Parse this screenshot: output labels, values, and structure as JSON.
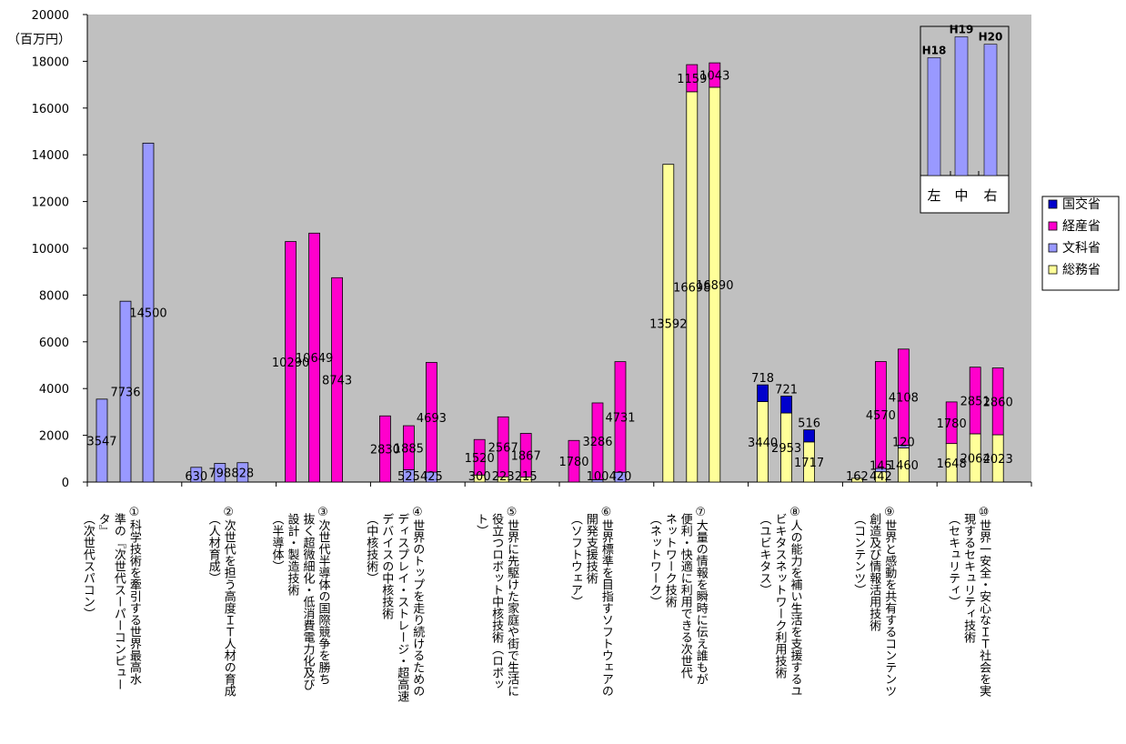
{
  "chart_data": {
    "type": "bar",
    "stacked": true,
    "unit_label": "（百万円）",
    "ylim": [
      0,
      20000
    ],
    "yticks": [
      0,
      2000,
      4000,
      6000,
      8000,
      10000,
      12000,
      14000,
      16000,
      18000,
      20000
    ],
    "grid": false,
    "legend_position": "right",
    "bar_positions_in_group": [
      "左",
      "中",
      "右"
    ],
    "series_order": [
      "総務省",
      "文科省",
      "経産省",
      "国交省"
    ],
    "colors": {
      "総務省": "#ffff99",
      "文科省": "#9999ff",
      "経産省": "#ff00cc",
      "国交省": "#0000cc",
      "plot_bg": "#c0c0c0"
    },
    "legend": [
      "国交省",
      "経産省",
      "文科省",
      "総務省"
    ],
    "categories": [
      {
        "num": "①",
        "label": "科学技術を牽引する世界最高水\n準の『次世代スーパーコンピュー\nタ』\n（次世代スパコン）",
        "bars": [
          {
            "文科省": 3547
          },
          {
            "文科省": 7736
          },
          {
            "文科省": 14500
          }
        ]
      },
      {
        "num": "②",
        "label": "次世代を担う高度ＩＴ人材の育成\n（人材育成）",
        "bars": [
          {
            "文科省": 630
          },
          {
            "文科省": 798
          },
          {
            "文科省": 828
          }
        ]
      },
      {
        "num": "③",
        "label": "次世代半導体の国際競争を勝ち\n抜く超微細化・低消費電力化及び\n設計・製造技術\n（半導体）",
        "bars": [
          {
            "経産省": 10290
          },
          {
            "経産省": 10649
          },
          {
            "経産省": 8743
          }
        ]
      },
      {
        "num": "④",
        "label": "世界のトップを走り続けるための\nディスプレイ・ストレージ・超高速\nデバイスの中核技術\n（中核技術）",
        "bars": [
          {
            "経産省": 2830
          },
          {
            "文科省": 525,
            "経産省": 1885
          },
          {
            "文科省": 425,
            "経産省": 4693
          }
        ]
      },
      {
        "num": "⑤",
        "label": "世界に先駆けた家庭や街で生活に\n役立つロボット中核技術（ロボッ\nト）",
        "bars": [
          {
            "総務省": 300,
            "経産省": 1520
          },
          {
            "総務省": 223,
            "経産省": 2567
          },
          {
            "総務省": 215,
            "経産省": 1867
          }
        ]
      },
      {
        "num": "⑥",
        "label": "世界標準を目指すソフトウェアの\n開発支援技術\n（ソフトウェア）",
        "bars": [
          {
            "経産省": 1780
          },
          {
            "文科省": 100,
            "経産省": 3286
          },
          {
            "文科省": 420,
            "経産省": 4731
          }
        ]
      },
      {
        "num": "⑦",
        "label": "大量の情報を瞬時に伝え誰もが\n便利・快適に利用できる次世代\nネットワーク技術\n（ネットワーク）",
        "bars": [
          {
            "総務省": 13592
          },
          {
            "総務省": 16698,
            "経産省": 1159
          },
          {
            "総務省": 16890,
            "経産省": 1043
          }
        ]
      },
      {
        "num": "⑧",
        "label": "人の能力を補い生活を支援するユ\nビキタスネットワーク利用技術\n（ユビキタス）",
        "bars": [
          {
            "総務省": 3440,
            "国交省": 718
          },
          {
            "総務省": 2953,
            "国交省": 721
          },
          {
            "総務省": 1717,
            "国交省": 516
          }
        ]
      },
      {
        "num": "⑨",
        "label": "世界と感動を共有するコンテンツ\n創造及び情報活用技術\n（コンテンツ）",
        "bars": [
          {
            "総務省": 162
          },
          {
            "総務省": 442,
            "文科省": 145,
            "経産省": 4570
          },
          {
            "総務省": 1460,
            "文科省": 120,
            "経産省": 4108
          }
        ]
      },
      {
        "num": "⑩",
        "label": "世界一安全・安心なＩＴ社会を実\n現するセキュリティ技術\n（セキュリティ）",
        "bars": [
          {
            "総務省": 1648,
            "経産省": 1780
          },
          {
            "総務省": 2064,
            "経産省": 2851
          },
          {
            "総務省": 2023,
            "経産省": 2860
          }
        ]
      }
    ],
    "data_labels": [
      {
        "cat": 0,
        "bar": 0,
        "series": "文科省",
        "text": "3547"
      },
      {
        "cat": 0,
        "bar": 1,
        "series": "文科省",
        "text": "7736"
      },
      {
        "cat": 0,
        "bar": 2,
        "series": "文科省",
        "text": "14500"
      },
      {
        "cat": 1,
        "bar": 0,
        "series": "文科省",
        "text": "630"
      },
      {
        "cat": 1,
        "bar": 1,
        "series": "文科省",
        "text": "798"
      },
      {
        "cat": 1,
        "bar": 2,
        "series": "文科省",
        "text": "828"
      },
      {
        "cat": 2,
        "bar": 0,
        "series": "経産省",
        "text": "10290"
      },
      {
        "cat": 2,
        "bar": 1,
        "series": "経産省",
        "text": "10649"
      },
      {
        "cat": 2,
        "bar": 2,
        "series": "経産省",
        "text": "8743"
      },
      {
        "cat": 3,
        "bar": 0,
        "series": "経産省",
        "text": "2830"
      },
      {
        "cat": 3,
        "bar": 1,
        "series": "経産省",
        "text": "1885"
      },
      {
        "cat": 3,
        "bar": 1,
        "series": "文科省",
        "text": "525"
      },
      {
        "cat": 3,
        "bar": 2,
        "series": "経産省",
        "text": "4693"
      },
      {
        "cat": 3,
        "bar": 2,
        "series": "文科省",
        "text": "425"
      },
      {
        "cat": 4,
        "bar": 0,
        "series": "経産省",
        "text": "1520"
      },
      {
        "cat": 4,
        "bar": 0,
        "series": "総務省",
        "text": "300"
      },
      {
        "cat": 4,
        "bar": 1,
        "series": "経産省",
        "text": "2567"
      },
      {
        "cat": 4,
        "bar": 1,
        "series": "総務省",
        "text": "223"
      },
      {
        "cat": 4,
        "bar": 2,
        "series": "経産省",
        "text": "1867"
      },
      {
        "cat": 4,
        "bar": 2,
        "series": "総務省",
        "text": "215"
      },
      {
        "cat": 5,
        "bar": 0,
        "series": "経産省",
        "text": "1780"
      },
      {
        "cat": 5,
        "bar": 1,
        "series": "経産省",
        "text": "3286"
      },
      {
        "cat": 5,
        "bar": 1,
        "series": "文科省",
        "text": "100"
      },
      {
        "cat": 5,
        "bar": 2,
        "series": "経産省",
        "text": "4731"
      },
      {
        "cat": 5,
        "bar": 2,
        "series": "文科省",
        "text": "420"
      },
      {
        "cat": 6,
        "bar": 0,
        "series": "総務省",
        "text": "13592"
      },
      {
        "cat": 6,
        "bar": 1,
        "series": "経産省",
        "text": "1159"
      },
      {
        "cat": 6,
        "bar": 1,
        "series": "総務省",
        "text": "16698"
      },
      {
        "cat": 6,
        "bar": 2,
        "series": "経産省",
        "text": "1043"
      },
      {
        "cat": 6,
        "bar": 2,
        "series": "総務省",
        "text": "16890"
      },
      {
        "cat": 7,
        "bar": 0,
        "series": "国交省",
        "text": "718"
      },
      {
        "cat": 7,
        "bar": 0,
        "series": "総務省",
        "text": "3440"
      },
      {
        "cat": 7,
        "bar": 1,
        "series": "国交省",
        "text": "721"
      },
      {
        "cat": 7,
        "bar": 1,
        "series": "総務省",
        "text": "2953"
      },
      {
        "cat": 7,
        "bar": 2,
        "series": "国交省",
        "text": "516"
      },
      {
        "cat": 7,
        "bar": 2,
        "series": "総務省",
        "text": "1717"
      },
      {
        "cat": 8,
        "bar": 0,
        "series": "総務省",
        "text": "162"
      },
      {
        "cat": 8,
        "bar": 1,
        "series": "文科省",
        "text": "145"
      },
      {
        "cat": 8,
        "bar": 1,
        "series": "経産省",
        "text": "4570"
      },
      {
        "cat": 8,
        "bar": 1,
        "series": "総務省",
        "text": "442"
      },
      {
        "cat": 8,
        "bar": 2,
        "series": "経産省",
        "text": "4108"
      },
      {
        "cat": 8,
        "bar": 2,
        "series": "文科省",
        "text": "120"
      },
      {
        "cat": 8,
        "bar": 2,
        "series": "総務省",
        "text": "1460"
      },
      {
        "cat": 9,
        "bar": 0,
        "series": "経産省",
        "text": "1780"
      },
      {
        "cat": 9,
        "bar": 0,
        "series": "総務省",
        "text": "1648"
      },
      {
        "cat": 9,
        "bar": 1,
        "series": "経産省",
        "text": "2851"
      },
      {
        "cat": 9,
        "bar": 1,
        "series": "総務省",
        "text": "2064"
      },
      {
        "cat": 9,
        "bar": 2,
        "series": "経産省",
        "text": "2860"
      },
      {
        "cat": 9,
        "bar": 2,
        "series": "総務省",
        "text": "2023"
      }
    ],
    "inset": {
      "bars": [
        {
          "label": "H18",
          "position": "左",
          "value": 15.8
        },
        {
          "label": "H19",
          "position": "中",
          "value": 18.6
        },
        {
          "label": "H20",
          "position": "右",
          "value": 17.6
        }
      ],
      "ylim": [
        0,
        20
      ]
    }
  }
}
